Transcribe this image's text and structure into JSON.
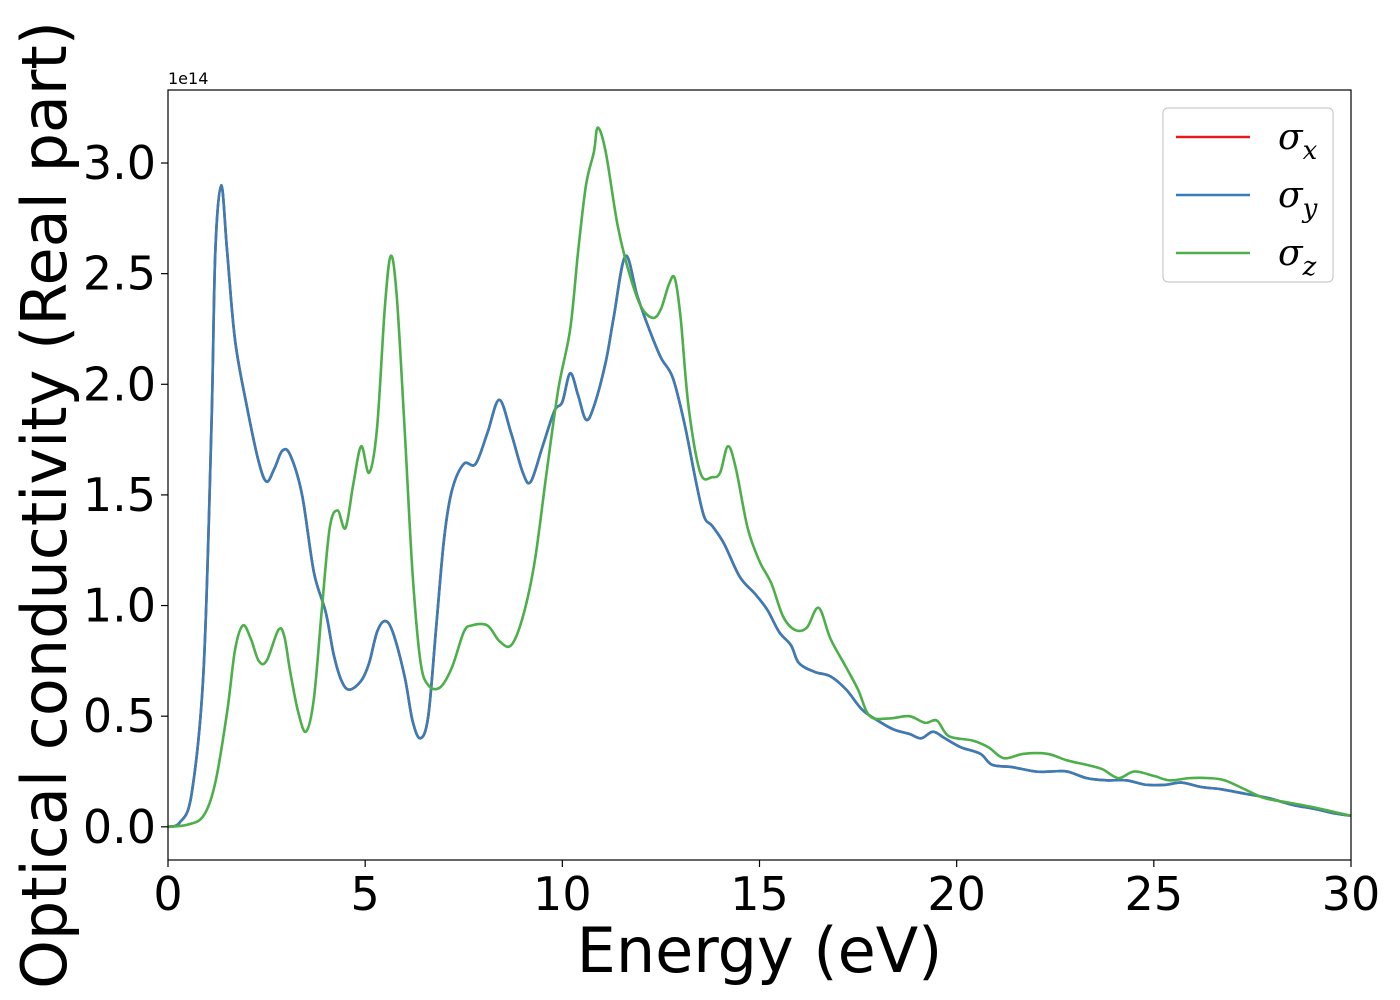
{
  "chart_data": {
    "type": "line",
    "xlabel": "Energy (eV)",
    "ylabel": "Optical conductivity (Real part)",
    "y_offset_label": "1e14",
    "xlim": [
      0,
      30
    ],
    "ylim": [
      -0.15,
      3.33
    ],
    "x_ticks": [
      0,
      5,
      10,
      15,
      20,
      25,
      30
    ],
    "x_tick_labels": [
      "0",
      "5",
      "10",
      "15",
      "20",
      "25",
      "30"
    ],
    "y_ticks": [
      0.0,
      0.5,
      1.0,
      1.5,
      2.0,
      2.5,
      3.0
    ],
    "y_tick_labels": [
      "0.0",
      "0.5",
      "1.0",
      "1.5",
      "2.0",
      "2.5",
      "3.0"
    ],
    "grid": false,
    "legend_position": "top-right",
    "series": [
      {
        "name": "σ",
        "subscript": "x",
        "color": "#e41a1c",
        "points": [
          [
            0,
            0
          ],
          [
            0.3,
            0.02
          ],
          [
            0.6,
            0.15
          ],
          [
            0.9,
            0.7
          ],
          [
            1.1,
            1.8
          ],
          [
            1.2,
            2.6
          ],
          [
            1.35,
            2.9
          ],
          [
            1.5,
            2.6
          ],
          [
            1.7,
            2.2
          ],
          [
            2.0,
            1.9
          ],
          [
            2.3,
            1.65
          ],
          [
            2.5,
            1.56
          ],
          [
            2.7,
            1.62
          ],
          [
            2.9,
            1.7
          ],
          [
            3.1,
            1.68
          ],
          [
            3.4,
            1.5
          ],
          [
            3.7,
            1.15
          ],
          [
            4.0,
            0.97
          ],
          [
            4.2,
            0.78
          ],
          [
            4.4,
            0.66
          ],
          [
            4.6,
            0.62
          ],
          [
            4.9,
            0.66
          ],
          [
            5.1,
            0.74
          ],
          [
            5.3,
            0.88
          ],
          [
            5.5,
            0.93
          ],
          [
            5.7,
            0.88
          ],
          [
            6.0,
            0.68
          ],
          [
            6.2,
            0.48
          ],
          [
            6.4,
            0.4
          ],
          [
            6.6,
            0.5
          ],
          [
            6.8,
            0.9
          ],
          [
            7.0,
            1.3
          ],
          [
            7.2,
            1.52
          ],
          [
            7.5,
            1.64
          ],
          [
            7.8,
            1.64
          ],
          [
            8.1,
            1.78
          ],
          [
            8.4,
            1.93
          ],
          [
            8.7,
            1.78
          ],
          [
            9.0,
            1.6
          ],
          [
            9.2,
            1.56
          ],
          [
            9.5,
            1.72
          ],
          [
            9.8,
            1.88
          ],
          [
            10.0,
            1.92
          ],
          [
            10.2,
            2.05
          ],
          [
            10.4,
            1.95
          ],
          [
            10.6,
            1.84
          ],
          [
            10.8,
            1.9
          ],
          [
            11.1,
            2.1
          ],
          [
            11.3,
            2.3
          ],
          [
            11.6,
            2.58
          ],
          [
            11.9,
            2.4
          ],
          [
            12.2,
            2.25
          ],
          [
            12.5,
            2.12
          ],
          [
            12.8,
            2.03
          ],
          [
            13.1,
            1.82
          ],
          [
            13.4,
            1.55
          ],
          [
            13.6,
            1.4
          ],
          [
            13.8,
            1.36
          ],
          [
            14.1,
            1.28
          ],
          [
            14.5,
            1.13
          ],
          [
            14.9,
            1.05
          ],
          [
            15.2,
            0.98
          ],
          [
            15.5,
            0.88
          ],
          [
            15.8,
            0.82
          ],
          [
            16.0,
            0.74
          ],
          [
            16.4,
            0.7
          ],
          [
            16.8,
            0.68
          ],
          [
            17.2,
            0.62
          ],
          [
            17.6,
            0.53
          ],
          [
            18.0,
            0.48
          ],
          [
            18.4,
            0.44
          ],
          [
            18.8,
            0.42
          ],
          [
            19.1,
            0.4
          ],
          [
            19.4,
            0.43
          ],
          [
            19.7,
            0.4
          ],
          [
            20.1,
            0.36
          ],
          [
            20.6,
            0.33
          ],
          [
            20.9,
            0.28
          ],
          [
            21.4,
            0.27
          ],
          [
            22.0,
            0.25
          ],
          [
            22.4,
            0.25
          ],
          [
            22.8,
            0.25
          ],
          [
            23.3,
            0.22
          ],
          [
            23.8,
            0.21
          ],
          [
            24.3,
            0.21
          ],
          [
            24.8,
            0.19
          ],
          [
            25.3,
            0.19
          ],
          [
            25.7,
            0.2
          ],
          [
            26.2,
            0.18
          ],
          [
            26.7,
            0.17
          ],
          [
            27.3,
            0.15
          ],
          [
            27.9,
            0.13
          ],
          [
            28.5,
            0.1
          ],
          [
            29.1,
            0.08
          ],
          [
            29.6,
            0.06
          ],
          [
            30.0,
            0.05
          ]
        ]
      },
      {
        "name": "σ",
        "subscript": "y",
        "color": "#377eb8",
        "points": [
          [
            0,
            0
          ],
          [
            0.3,
            0.02
          ],
          [
            0.6,
            0.15
          ],
          [
            0.9,
            0.7
          ],
          [
            1.1,
            1.8
          ],
          [
            1.2,
            2.6
          ],
          [
            1.35,
            2.9
          ],
          [
            1.5,
            2.6
          ],
          [
            1.7,
            2.2
          ],
          [
            2.0,
            1.9
          ],
          [
            2.3,
            1.65
          ],
          [
            2.5,
            1.56
          ],
          [
            2.7,
            1.62
          ],
          [
            2.9,
            1.7
          ],
          [
            3.1,
            1.68
          ],
          [
            3.4,
            1.5
          ],
          [
            3.7,
            1.15
          ],
          [
            4.0,
            0.97
          ],
          [
            4.2,
            0.78
          ],
          [
            4.4,
            0.66
          ],
          [
            4.6,
            0.62
          ],
          [
            4.9,
            0.66
          ],
          [
            5.1,
            0.74
          ],
          [
            5.3,
            0.88
          ],
          [
            5.5,
            0.93
          ],
          [
            5.7,
            0.88
          ],
          [
            6.0,
            0.68
          ],
          [
            6.2,
            0.48
          ],
          [
            6.4,
            0.4
          ],
          [
            6.6,
            0.5
          ],
          [
            6.8,
            0.9
          ],
          [
            7.0,
            1.3
          ],
          [
            7.2,
            1.52
          ],
          [
            7.5,
            1.64
          ],
          [
            7.8,
            1.64
          ],
          [
            8.1,
            1.78
          ],
          [
            8.4,
            1.93
          ],
          [
            8.7,
            1.78
          ],
          [
            9.0,
            1.6
          ],
          [
            9.2,
            1.56
          ],
          [
            9.5,
            1.72
          ],
          [
            9.8,
            1.88
          ],
          [
            10.0,
            1.92
          ],
          [
            10.2,
            2.05
          ],
          [
            10.4,
            1.95
          ],
          [
            10.6,
            1.84
          ],
          [
            10.8,
            1.9
          ],
          [
            11.1,
            2.1
          ],
          [
            11.3,
            2.3
          ],
          [
            11.6,
            2.58
          ],
          [
            11.9,
            2.4
          ],
          [
            12.2,
            2.25
          ],
          [
            12.5,
            2.12
          ],
          [
            12.8,
            2.03
          ],
          [
            13.1,
            1.82
          ],
          [
            13.4,
            1.55
          ],
          [
            13.6,
            1.4
          ],
          [
            13.8,
            1.36
          ],
          [
            14.1,
            1.28
          ],
          [
            14.5,
            1.13
          ],
          [
            14.9,
            1.05
          ],
          [
            15.2,
            0.98
          ],
          [
            15.5,
            0.88
          ],
          [
            15.8,
            0.82
          ],
          [
            16.0,
            0.74
          ],
          [
            16.4,
            0.7
          ],
          [
            16.8,
            0.68
          ],
          [
            17.2,
            0.62
          ],
          [
            17.6,
            0.53
          ],
          [
            18.0,
            0.48
          ],
          [
            18.4,
            0.44
          ],
          [
            18.8,
            0.42
          ],
          [
            19.1,
            0.4
          ],
          [
            19.4,
            0.43
          ],
          [
            19.7,
            0.4
          ],
          [
            20.1,
            0.36
          ],
          [
            20.6,
            0.33
          ],
          [
            20.9,
            0.28
          ],
          [
            21.4,
            0.27
          ],
          [
            22.0,
            0.25
          ],
          [
            22.4,
            0.25
          ],
          [
            22.8,
            0.25
          ],
          [
            23.3,
            0.22
          ],
          [
            23.8,
            0.21
          ],
          [
            24.3,
            0.21
          ],
          [
            24.8,
            0.19
          ],
          [
            25.3,
            0.19
          ],
          [
            25.7,
            0.2
          ],
          [
            26.2,
            0.18
          ],
          [
            26.7,
            0.17
          ],
          [
            27.3,
            0.15
          ],
          [
            27.9,
            0.13
          ],
          [
            28.5,
            0.1
          ],
          [
            29.1,
            0.08
          ],
          [
            29.6,
            0.06
          ],
          [
            30.0,
            0.05
          ]
        ]
      },
      {
        "name": "σ",
        "subscript": "z",
        "color": "#4daf4a",
        "points": [
          [
            0,
            0
          ],
          [
            0.5,
            0.01
          ],
          [
            0.9,
            0.05
          ],
          [
            1.2,
            0.2
          ],
          [
            1.5,
            0.52
          ],
          [
            1.7,
            0.8
          ],
          [
            1.9,
            0.91
          ],
          [
            2.1,
            0.85
          ],
          [
            2.3,
            0.75
          ],
          [
            2.5,
            0.75
          ],
          [
            2.8,
            0.89
          ],
          [
            2.95,
            0.86
          ],
          [
            3.1,
            0.7
          ],
          [
            3.3,
            0.52
          ],
          [
            3.5,
            0.43
          ],
          [
            3.7,
            0.58
          ],
          [
            3.9,
            0.98
          ],
          [
            4.1,
            1.35
          ],
          [
            4.3,
            1.43
          ],
          [
            4.5,
            1.35
          ],
          [
            4.7,
            1.55
          ],
          [
            4.9,
            1.72
          ],
          [
            5.1,
            1.6
          ],
          [
            5.3,
            1.8
          ],
          [
            5.5,
            2.35
          ],
          [
            5.65,
            2.58
          ],
          [
            5.8,
            2.4
          ],
          [
            6.0,
            1.8
          ],
          [
            6.2,
            1.15
          ],
          [
            6.4,
            0.75
          ],
          [
            6.6,
            0.64
          ],
          [
            6.9,
            0.63
          ],
          [
            7.2,
            0.72
          ],
          [
            7.5,
            0.88
          ],
          [
            7.7,
            0.91
          ],
          [
            8.1,
            0.91
          ],
          [
            8.4,
            0.84
          ],
          [
            8.7,
            0.82
          ],
          [
            9.0,
            0.95
          ],
          [
            9.3,
            1.2
          ],
          [
            9.6,
            1.6
          ],
          [
            9.9,
            1.98
          ],
          [
            10.2,
            2.25
          ],
          [
            10.4,
            2.6
          ],
          [
            10.6,
            2.9
          ],
          [
            10.8,
            3.05
          ],
          [
            10.9,
            3.16
          ],
          [
            11.1,
            3.05
          ],
          [
            11.4,
            2.72
          ],
          [
            11.7,
            2.5
          ],
          [
            12.0,
            2.35
          ],
          [
            12.3,
            2.3
          ],
          [
            12.5,
            2.34
          ],
          [
            12.7,
            2.45
          ],
          [
            12.85,
            2.48
          ],
          [
            13.0,
            2.3
          ],
          [
            13.2,
            1.9
          ],
          [
            13.5,
            1.6
          ],
          [
            13.8,
            1.58
          ],
          [
            14.0,
            1.6
          ],
          [
            14.2,
            1.72
          ],
          [
            14.4,
            1.62
          ],
          [
            14.7,
            1.35
          ],
          [
            15.0,
            1.2
          ],
          [
            15.3,
            1.1
          ],
          [
            15.6,
            0.95
          ],
          [
            15.9,
            0.89
          ],
          [
            16.2,
            0.9
          ],
          [
            16.5,
            0.99
          ],
          [
            16.8,
            0.85
          ],
          [
            17.2,
            0.72
          ],
          [
            17.5,
            0.62
          ],
          [
            17.8,
            0.5
          ],
          [
            18.3,
            0.49
          ],
          [
            18.8,
            0.5
          ],
          [
            19.2,
            0.47
          ],
          [
            19.5,
            0.48
          ],
          [
            19.8,
            0.41
          ],
          [
            20.4,
            0.39
          ],
          [
            20.8,
            0.36
          ],
          [
            21.2,
            0.31
          ],
          [
            21.7,
            0.33
          ],
          [
            22.3,
            0.33
          ],
          [
            22.8,
            0.3
          ],
          [
            23.3,
            0.28
          ],
          [
            23.7,
            0.26
          ],
          [
            24.1,
            0.22
          ],
          [
            24.5,
            0.25
          ],
          [
            25.0,
            0.23
          ],
          [
            25.4,
            0.21
          ],
          [
            25.9,
            0.22
          ],
          [
            26.4,
            0.22
          ],
          [
            26.8,
            0.21
          ],
          [
            27.3,
            0.17
          ],
          [
            27.8,
            0.13
          ],
          [
            28.4,
            0.11
          ],
          [
            29.0,
            0.09
          ],
          [
            29.5,
            0.07
          ],
          [
            30.0,
            0.05
          ]
        ]
      }
    ]
  }
}
